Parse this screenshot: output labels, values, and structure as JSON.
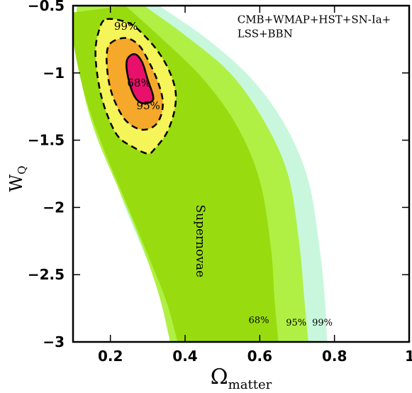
{
  "chart_data": {
    "type": "contour",
    "xlabel": {
      "symbol": "Ω",
      "subscript": "matter"
    },
    "ylabel": {
      "symbol": "W",
      "subscript": "Q"
    },
    "xlim": [
      0.1,
      1.0
    ],
    "ylim": [
      -3.0,
      -0.5
    ],
    "xticks": [
      {
        "value": 0.2,
        "label": "0.2"
      },
      {
        "value": 0.4,
        "label": "0.4"
      },
      {
        "value": 0.6,
        "label": "0.6"
      },
      {
        "value": 0.8,
        "label": "0.8"
      },
      {
        "value": 1.0,
        "label": "1"
      }
    ],
    "yticks": [
      {
        "value": -0.5,
        "label": "−0.5"
      },
      {
        "value": -1.0,
        "label": "−1"
      },
      {
        "value": -1.5,
        "label": "−1.5"
      },
      {
        "value": -2.0,
        "label": "−2"
      },
      {
        "value": -2.5,
        "label": "−2.5"
      },
      {
        "value": -3.0,
        "label": "−3"
      }
    ],
    "grid": false,
    "colors": {
      "sn_99": "#c8f7dd",
      "sn_95": "#b0f044",
      "sn_68": "#98dc10",
      "combined_99": "#f5f55a",
      "combined_95": "#f5a82a",
      "combined_68": "#e8106a",
      "contour_line": "#000000"
    },
    "regions": {
      "supernovae": {
        "label": "Supernovae",
        "label_at": [
          0.43,
          -2.25
        ],
        "levels": [
          {
            "level": "99%",
            "color_key": "sn_99",
            "left_edge": [
              [
                0.12,
                -0.5
              ],
              [
                0.13,
                -0.85
              ],
              [
                0.15,
                -1.25
              ],
              [
                0.19,
                -1.6
              ],
              [
                0.24,
                -2.0
              ],
              [
                0.3,
                -2.4
              ],
              [
                0.35,
                -2.75
              ],
              [
                0.38,
                -3.0
              ]
            ],
            "right_edge": [
              [
                0.33,
                -0.5
              ],
              [
                0.46,
                -0.75
              ],
              [
                0.58,
                -1.05
              ],
              [
                0.67,
                -1.4
              ],
              [
                0.73,
                -1.8
              ],
              [
                0.76,
                -2.3
              ],
              [
                0.775,
                -2.7
              ],
              [
                0.78,
                -3.0
              ]
            ]
          },
          {
            "level": "95%",
            "color_key": "sn_95",
            "left_edge": [
              [
                0.11,
                -0.5
              ],
              [
                0.11,
                -0.75
              ],
              [
                0.125,
                -1.1
              ],
              [
                0.16,
                -1.45
              ],
              [
                0.22,
                -1.85
              ],
              [
                0.28,
                -2.25
              ],
              [
                0.33,
                -2.65
              ],
              [
                0.36,
                -3.0
              ]
            ],
            "right_edge": [
              [
                0.29,
                -0.5
              ],
              [
                0.4,
                -0.72
              ],
              [
                0.52,
                -1.0
              ],
              [
                0.61,
                -1.35
              ],
              [
                0.675,
                -1.75
              ],
              [
                0.705,
                -2.25
              ],
              [
                0.72,
                -2.7
              ],
              [
                0.73,
                -3.0
              ]
            ]
          },
          {
            "level": "68%",
            "color_key": "sn_68",
            "left_edge": [
              [
                0.1,
                -0.55
              ],
              [
                0.1,
                -0.75
              ],
              [
                0.13,
                -1.15
              ],
              [
                0.18,
                -1.55
              ],
              [
                0.24,
                -1.95
              ],
              [
                0.3,
                -2.35
              ],
              [
                0.35,
                -2.7
              ],
              [
                0.38,
                -3.0
              ]
            ],
            "right_edge": [
              [
                0.24,
                -0.5
              ],
              [
                0.34,
                -0.75
              ],
              [
                0.45,
                -1.05
              ],
              [
                0.54,
                -1.4
              ],
              [
                0.6,
                -1.8
              ],
              [
                0.63,
                -2.3
              ],
              [
                0.64,
                -2.7
              ],
              [
                0.65,
                -3.0
              ]
            ]
          }
        ],
        "level_labels": [
          {
            "text": "68%",
            "at": [
              0.57,
              -2.86
            ]
          },
          {
            "text": "95%",
            "at": [
              0.67,
              -2.88
            ]
          },
          {
            "text": "99%",
            "at": [
              0.74,
              -2.88
            ]
          }
        ]
      },
      "combined": {
        "label_lines": [
          "CMB+WMAP+HST+SN-Ia+",
          "LSS+BBN"
        ],
        "levels": [
          {
            "level": "99%",
            "color_key": "combined_99",
            "outline": [
              [
                0.19,
                -0.6
              ],
              [
                0.25,
                -0.63
              ],
              [
                0.29,
                -0.72
              ],
              [
                0.33,
                -0.85
              ],
              [
                0.36,
                -1.0
              ],
              [
                0.375,
                -1.15
              ],
              [
                0.37,
                -1.3
              ],
              [
                0.35,
                -1.45
              ],
              [
                0.32,
                -1.56
              ],
              [
                0.3,
                -1.6
              ],
              [
                0.26,
                -1.55
              ],
              [
                0.22,
                -1.47
              ],
              [
                0.19,
                -1.3
              ],
              [
                0.17,
                -1.1
              ],
              [
                0.16,
                -0.85
              ],
              [
                0.17,
                -0.68
              ]
            ]
          },
          {
            "level": "95%",
            "color_key": "combined_95",
            "outline": [
              [
                0.2,
                -0.78
              ],
              [
                0.24,
                -0.74
              ],
              [
                0.275,
                -0.79
              ],
              [
                0.3,
                -0.9
              ],
              [
                0.325,
                -1.05
              ],
              [
                0.34,
                -1.2
              ],
              [
                0.335,
                -1.32
              ],
              [
                0.315,
                -1.4
              ],
              [
                0.28,
                -1.42
              ],
              [
                0.24,
                -1.35
              ],
              [
                0.21,
                -1.2
              ],
              [
                0.195,
                -1.05
              ],
              [
                0.19,
                -0.88
              ]
            ]
          },
          {
            "level": "68%",
            "color_key": "combined_68",
            "outline": [
              [
                0.245,
                -0.9
              ],
              [
                0.265,
                -0.86
              ],
              [
                0.285,
                -0.92
              ],
              [
                0.3,
                -1.05
              ],
              [
                0.315,
                -1.18
              ],
              [
                0.305,
                -1.22
              ],
              [
                0.28,
                -1.22
              ],
              [
                0.26,
                -1.15
              ],
              [
                0.245,
                -1.0
              ]
            ]
          }
        ],
        "level_labels": [
          {
            "text": "99%",
            "at": [
              0.21,
              -0.68
            ]
          },
          {
            "text": "68%",
            "at": [
              0.245,
              -1.1
            ]
          },
          {
            "text": "95%",
            "at": [
              0.27,
              -1.27
            ]
          }
        ]
      }
    }
  }
}
